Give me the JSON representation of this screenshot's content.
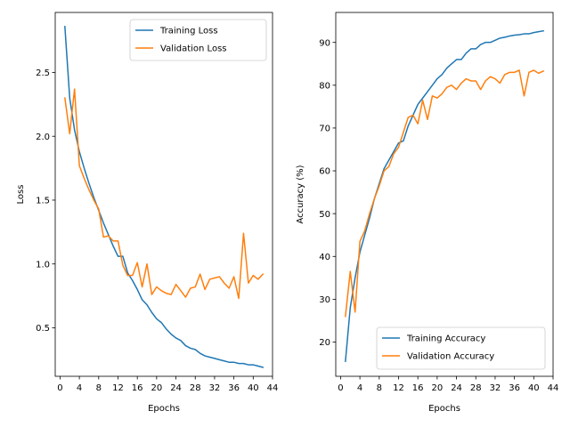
{
  "chart_data": [
    {
      "type": "line",
      "xlabel": "Epochs",
      "ylabel": "Loss",
      "xlim": [
        -1,
        44
      ],
      "ylim": [
        0.12,
        2.97
      ],
      "xticks": [
        0,
        4,
        8,
        12,
        16,
        20,
        24,
        28,
        32,
        36,
        40,
        44
      ],
      "yticks": [
        0.5,
        1.0,
        1.5,
        2.0,
        2.5
      ],
      "ytick_labels": [
        "0.5",
        "1.0",
        "1.5",
        "2.0",
        "2.5"
      ],
      "grid": false,
      "legend": "upper-right",
      "x": [
        1,
        2,
        3,
        4,
        5,
        6,
        7,
        8,
        9,
        10,
        11,
        12,
        13,
        14,
        15,
        16,
        17,
        18,
        19,
        20,
        21,
        22,
        23,
        24,
        25,
        26,
        27,
        28,
        29,
        30,
        31,
        32,
        33,
        34,
        35,
        36,
        37,
        38,
        39,
        40,
        41,
        42
      ],
      "series": [
        {
          "name": "Training Loss",
          "color": "#1f77b4",
          "values": [
            2.86,
            2.3,
            2.05,
            1.88,
            1.75,
            1.63,
            1.52,
            1.42,
            1.32,
            1.23,
            1.14,
            1.06,
            1.06,
            0.93,
            0.87,
            0.8,
            0.72,
            0.68,
            0.62,
            0.57,
            0.54,
            0.49,
            0.45,
            0.42,
            0.4,
            0.36,
            0.34,
            0.33,
            0.3,
            0.28,
            0.27,
            0.26,
            0.25,
            0.24,
            0.23,
            0.23,
            0.22,
            0.22,
            0.21,
            0.21,
            0.2,
            0.19
          ]
        },
        {
          "name": "Validation Loss",
          "color": "#ff7f0e",
          "values": [
            2.3,
            2.02,
            2.37,
            1.77,
            1.67,
            1.58,
            1.5,
            1.43,
            1.21,
            1.22,
            1.18,
            1.18,
            0.99,
            0.91,
            0.91,
            1.01,
            0.82,
            1.0,
            0.76,
            0.82,
            0.79,
            0.77,
            0.76,
            0.84,
            0.79,
            0.74,
            0.81,
            0.82,
            0.92,
            0.8,
            0.88,
            0.89,
            0.9,
            0.85,
            0.81,
            0.9,
            0.73,
            1.24,
            0.85,
            0.91,
            0.88,
            0.92
          ]
        }
      ]
    },
    {
      "type": "line",
      "xlabel": "Epochs",
      "ylabel": "Accuracy (%)",
      "xlim": [
        -1,
        44
      ],
      "ylim": [
        12,
        97
      ],
      "xticks": [
        0,
        4,
        8,
        12,
        16,
        20,
        24,
        28,
        32,
        36,
        40,
        44
      ],
      "yticks": [
        20,
        30,
        40,
        50,
        60,
        70,
        80,
        90
      ],
      "ytick_labels": [
        "20",
        "30",
        "40",
        "50",
        "60",
        "70",
        "80",
        "90"
      ],
      "grid": false,
      "legend": "lower-right",
      "x": [
        1,
        2,
        3,
        4,
        5,
        6,
        7,
        8,
        9,
        10,
        11,
        12,
        13,
        14,
        15,
        16,
        17,
        18,
        19,
        20,
        21,
        22,
        23,
        24,
        25,
        26,
        27,
        28,
        29,
        30,
        31,
        32,
        33,
        34,
        35,
        36,
        37,
        38,
        39,
        40,
        41,
        42
      ],
      "series": [
        {
          "name": "Training Accuracy",
          "color": "#1f77b4",
          "values": [
            15.5,
            28.0,
            35.0,
            41.0,
            45.0,
            49.0,
            53.5,
            57.0,
            60.5,
            62.5,
            64.5,
            66.5,
            67.0,
            70.5,
            73.0,
            75.5,
            77.0,
            78.5,
            80.0,
            81.5,
            82.5,
            84.0,
            85.0,
            86.0,
            86.0,
            87.5,
            88.5,
            88.5,
            89.5,
            90.0,
            90.0,
            90.5,
            91.0,
            91.2,
            91.5,
            91.7,
            91.8,
            92.0,
            92.0,
            92.3,
            92.5,
            92.7
          ]
        },
        {
          "name": "Validation Accuracy",
          "color": "#ff7f0e",
          "values": [
            26.0,
            36.5,
            27.0,
            43.5,
            46.0,
            50.0,
            53.5,
            56.5,
            60.0,
            61.0,
            64.0,
            65.5,
            69.0,
            72.5,
            73.0,
            71.0,
            76.5,
            72.0,
            77.5,
            77.0,
            78.0,
            79.5,
            80.0,
            79.0,
            80.5,
            81.5,
            81.0,
            81.0,
            79.0,
            81.0,
            82.0,
            81.5,
            80.5,
            82.5,
            83.0,
            83.0,
            83.5,
            77.5,
            83.0,
            83.5,
            82.8,
            83.3
          ]
        }
      ]
    }
  ]
}
